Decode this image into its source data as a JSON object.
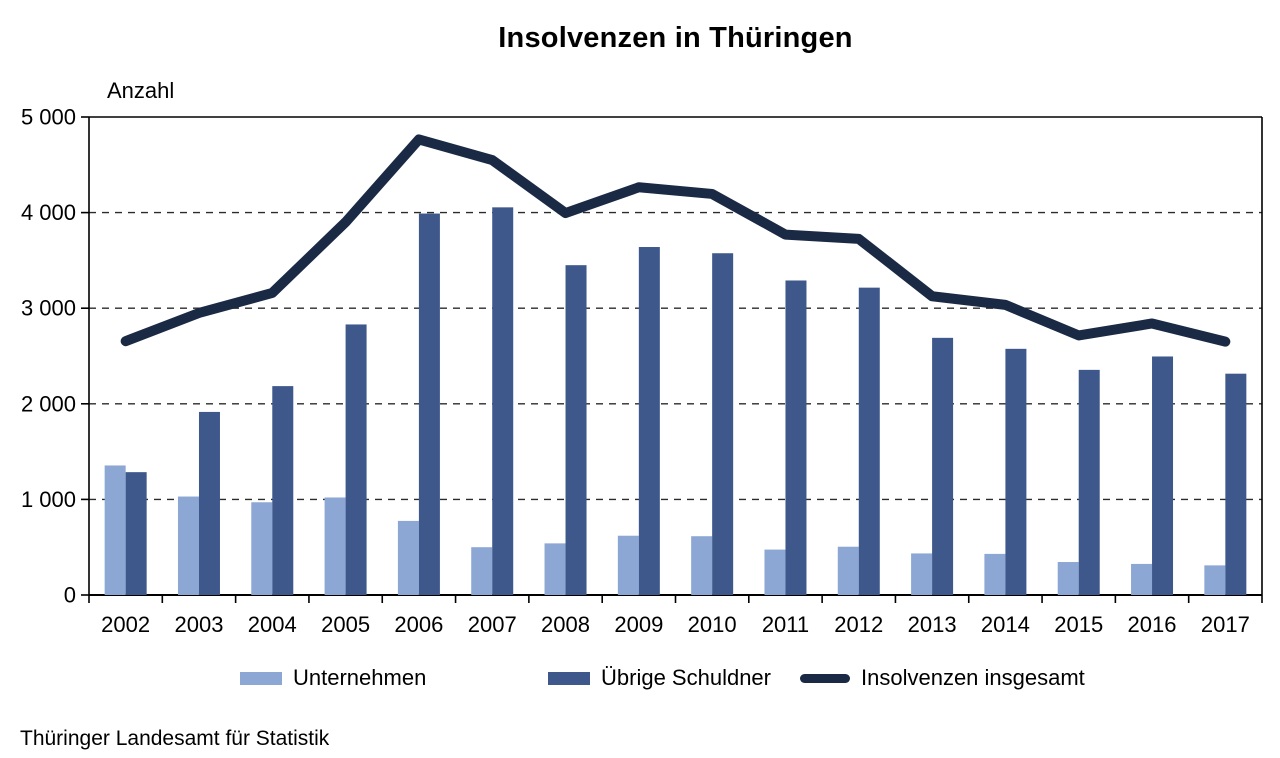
{
  "title": "Insolvenzen in Thüringen",
  "footer": "Thüringer Landesamt für Statistik",
  "colors": {
    "unternehmen": "#8CA7D4",
    "uebrige_schuldner": "#3E588C",
    "insgesamt_line": "#1B2A44",
    "axis": "#000000",
    "gridline": "#2b2b2b"
  },
  "chart_data": {
    "type": "bar",
    "subtype": "grouped bars with overlaid total line",
    "title": "Insolvenzen in Thüringen",
    "y_axis_label": "Anzahl",
    "xlabel": "",
    "ylabel": "Anzahl",
    "ylim": [
      0,
      5000
    ],
    "y_tick_interval": 1000,
    "y_tick_labels": [
      "0",
      "1 000",
      "2 000",
      "3 000",
      "4 000",
      "5 000"
    ],
    "grid": "horizontal dashed lines at 1000..4000",
    "legend_position": "bottom",
    "categories": [
      "2002",
      "2003",
      "2004",
      "2005",
      "2006",
      "2007",
      "2008",
      "2009",
      "2010",
      "2011",
      "2012",
      "2013",
      "2014",
      "2015",
      "2016",
      "2017"
    ],
    "series": [
      {
        "name": "Unternehmen",
        "type": "bar",
        "color": "#8CA7D4",
        "values": [
          1355,
          1030,
          970,
          1020,
          775,
          500,
          540,
          620,
          615,
          475,
          505,
          435,
          430,
          345,
          325,
          310
        ]
      },
      {
        "name": "Übrige Schuldner",
        "type": "bar",
        "color": "#3E588C",
        "values": [
          1285,
          1915,
          2185,
          2830,
          3990,
          4055,
          3450,
          3640,
          3575,
          3290,
          3215,
          2690,
          2575,
          2355,
          2495,
          2315
        ]
      },
      {
        "name": "Insolvenzen insgesamt",
        "type": "line",
        "color": "#1B2A44",
        "values": [
          2655,
          2950,
          3160,
          3900,
          4765,
          4550,
          3995,
          4265,
          4195,
          3770,
          3725,
          3125,
          3035,
          2715,
          2840,
          2650
        ]
      }
    ]
  },
  "legend": {
    "unternehmen_label": "Unternehmen",
    "uebrige_label": "Übrige Schuldner",
    "insgesamt_label": "Insolvenzen insgesamt"
  }
}
